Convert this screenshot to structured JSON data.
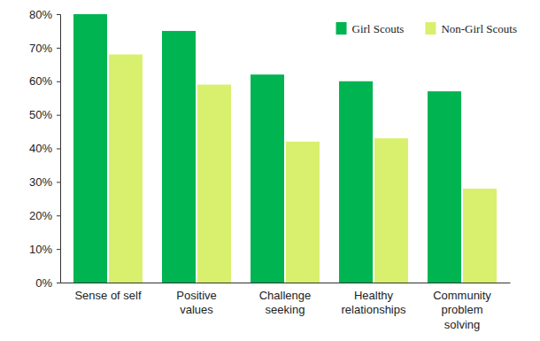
{
  "chart_data": {
    "type": "bar",
    "categories": [
      "Sense of self",
      "Positive values",
      "Challenge seeking",
      "Healthy relationships",
      "Community problem solving"
    ],
    "series": [
      {
        "name": "Girl Scouts",
        "color": "#00b451",
        "values": [
          80,
          75,
          62,
          60,
          57
        ]
      },
      {
        "name": "Non-Girl Scouts",
        "color": "#d9f06e",
        "values": [
          68,
          59,
          42,
          43,
          28
        ]
      }
    ],
    "ylim": [
      0,
      80
    ],
    "yticks": [
      {
        "value": 0,
        "label": "0%"
      },
      {
        "value": 10,
        "label": "10%"
      },
      {
        "value": 20,
        "label": "20%"
      },
      {
        "value": 30,
        "label": "30%"
      },
      {
        "value": 40,
        "label": "40%"
      },
      {
        "value": 50,
        "label": "50%"
      },
      {
        "value": 60,
        "label": "60%"
      },
      {
        "value": 70,
        "label": "70%"
      },
      {
        "value": 80,
        "label": "80%"
      }
    ],
    "grid": false,
    "legend": "top-right"
  }
}
